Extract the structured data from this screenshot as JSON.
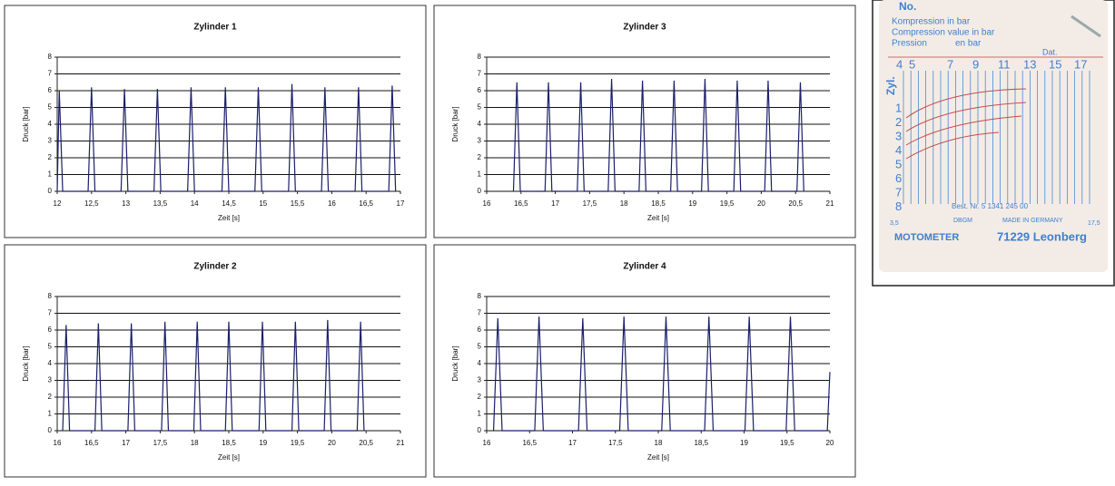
{
  "chart_data": [
    {
      "type": "line",
      "title": "Zylinder 1",
      "x_label": "Zeit [s]",
      "y_label": "Druck [bar]",
      "xlim": [
        12,
        17
      ],
      "xticks": [
        12,
        {
          "value": 12.5,
          "label": "12,5"
        },
        13,
        {
          "value": 13.5,
          "label": "13,5"
        },
        14,
        {
          "value": 14.5,
          "label": "14,5"
        },
        15,
        {
          "value": 15.5,
          "label": "15,5"
        },
        16,
        {
          "value": 16.5,
          "label": "16,5"
        },
        17
      ],
      "ylim": [
        0,
        8
      ],
      "yticks": [
        0,
        1,
        2,
        3,
        4,
        5,
        6,
        7,
        8
      ],
      "grid": true,
      "color": "#1b1f6b",
      "x": [
        12,
        12.03,
        12.08,
        12.45,
        12.5,
        12.55,
        12.93,
        12.98,
        13.03,
        13.41,
        13.46,
        13.51,
        13.9,
        13.95,
        14,
        14.4,
        14.45,
        14.5,
        14.88,
        14.93,
        14.98,
        15.37,
        15.42,
        15.47,
        15.85,
        15.9,
        15.95,
        16.34,
        16.39,
        16.44,
        16.83,
        16.88,
        16.93
      ],
      "values": [
        0,
        6.0,
        0,
        0,
        6.2,
        0,
        0,
        6.1,
        0,
        0,
        6.1,
        0,
        0,
        6.2,
        0,
        0,
        6.2,
        0,
        0,
        6.2,
        0,
        0,
        6.4,
        0,
        0,
        6.2,
        0,
        0,
        6.2,
        0,
        0,
        6.3,
        0
      ]
    },
    {
      "type": "line",
      "title": "Zylinder 3",
      "x_label": "Zeit [s]",
      "y_label": "Druck [bar]",
      "xlim": [
        16,
        21
      ],
      "xticks": [
        16,
        {
          "value": 16.5,
          "label": "16,5"
        },
        17,
        {
          "value": 17.5,
          "label": "17,5"
        },
        18,
        {
          "value": 18.5,
          "label": "18,5"
        },
        19,
        {
          "value": 19.5,
          "label": "19,5"
        },
        20,
        {
          "value": 20.5,
          "label": "20,5"
        },
        21
      ],
      "ylim": [
        0,
        8
      ],
      "yticks": [
        0,
        1,
        2,
        3,
        4,
        5,
        6,
        7,
        8
      ],
      "grid": true,
      "color": "#1b1f6b",
      "x": [
        16.39,
        16.44,
        16.49,
        16.85,
        16.9,
        16.95,
        17.32,
        17.37,
        17.42,
        17.77,
        17.82,
        17.87,
        18.22,
        18.27,
        18.32,
        18.68,
        18.73,
        18.78,
        19.13,
        19.18,
        19.23,
        19.6,
        19.65,
        19.7,
        20.05,
        20.1,
        20.15,
        20.52,
        20.57,
        20.62
      ],
      "values": [
        0,
        6.5,
        0,
        0,
        6.5,
        0,
        0,
        6.5,
        0,
        0,
        6.7,
        0,
        0,
        6.6,
        0,
        0,
        6.6,
        0,
        0,
        6.7,
        0,
        0,
        6.6,
        0,
        0,
        6.6,
        0,
        0,
        6.5,
        0
      ]
    },
    {
      "type": "line",
      "title": "Zylinder 2",
      "x_label": "Zeit [s]",
      "y_label": "Druck [bar]",
      "xlim": [
        16,
        21
      ],
      "xticks": [
        16,
        {
          "value": 16.5,
          "label": "16,5"
        },
        17,
        {
          "value": 17.5,
          "label": "17,5"
        },
        18,
        {
          "value": 18.5,
          "label": "18,5"
        },
        19,
        {
          "value": 19.5,
          "label": "19,5"
        },
        20,
        {
          "value": 20.5,
          "label": "20,5"
        },
        21
      ],
      "ylim": [
        0,
        8
      ],
      "yticks": [
        0,
        1,
        2,
        3,
        4,
        5,
        6,
        7,
        8
      ],
      "grid": true,
      "color": "#1b1f6b",
      "x": [
        16.08,
        16.13,
        16.18,
        16.55,
        16.6,
        16.65,
        17.03,
        17.08,
        17.13,
        17.52,
        17.57,
        17.62,
        17.99,
        18.04,
        18.09,
        18.45,
        18.5,
        18.55,
        18.94,
        18.99,
        19.04,
        19.42,
        19.47,
        19.52,
        19.89,
        19.94,
        19.99,
        20.37,
        20.42,
        20.47
      ],
      "values": [
        0,
        6.3,
        0,
        0,
        6.4,
        0,
        0,
        6.4,
        0,
        0,
        6.5,
        0,
        0,
        6.5,
        0,
        0,
        6.5,
        0,
        0,
        6.5,
        0,
        0,
        6.5,
        0,
        0,
        6.6,
        0,
        0,
        6.5,
        0
      ]
    },
    {
      "type": "line",
      "title": "Zylinder 4",
      "x_label": "Zeit [s]",
      "y_label": "Druck [bar]",
      "xlim": [
        16,
        20
      ],
      "xticks": [
        16,
        {
          "value": 16.5,
          "label": "16,5"
        },
        17,
        {
          "value": 17.5,
          "label": "17,5"
        },
        18,
        {
          "value": 18.5,
          "label": "18,5"
        },
        19,
        {
          "value": 19.5,
          "label": "19,5"
        },
        20
      ],
      "ylim": [
        0,
        8
      ],
      "yticks": [
        0,
        1,
        2,
        3,
        4,
        5,
        6,
        7,
        8
      ],
      "grid": true,
      "color": "#1b1f6b",
      "x": [
        16.08,
        16.13,
        16.18,
        16.56,
        16.61,
        16.66,
        17.07,
        17.12,
        17.17,
        17.55,
        17.6,
        17.65,
        18.04,
        18.09,
        18.14,
        18.54,
        18.59,
        18.64,
        19.01,
        19.06,
        19.11,
        19.49,
        19.54,
        19.59,
        19.97,
        20
      ],
      "values": [
        0,
        6.7,
        0,
        0,
        6.8,
        0,
        0,
        6.7,
        0,
        0,
        6.8,
        0,
        0,
        6.8,
        0,
        0,
        6.8,
        0,
        0,
        6.8,
        0,
        0,
        6.8,
        0,
        0,
        3.5
      ]
    }
  ],
  "card": {
    "no": "No.",
    "line1": "Kompression in bar",
    "line2": "Compression value in bar",
    "line3a": "Pression",
    "line3b": "en bar",
    "dat": "Dat.",
    "top_scale": [
      "4",
      "5",
      "7",
      "9",
      "11",
      "13",
      "15",
      "17"
    ],
    "zyl": "Zyl.",
    "rows": [
      "1",
      "2",
      "3",
      "4",
      "5",
      "6",
      "7",
      "8"
    ],
    "bottom_left": "3,5",
    "best": "Best. Nr. 5 1341 245 00",
    "dbgm": "DBGM",
    "made": "MADE IN GERMANY",
    "bottom_right": "17,5",
    "brand": "MOTOMETER",
    "address": "71229 Leonberg"
  }
}
